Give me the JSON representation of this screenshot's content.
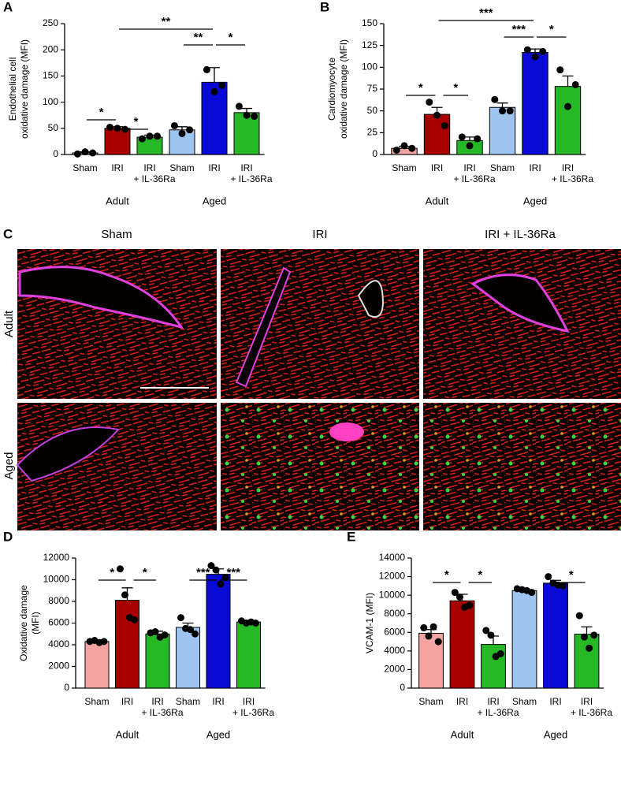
{
  "chart_data": [
    {
      "type": "bar",
      "panel": "A",
      "ylabel": [
        "Endothelial cell",
        "oxidative damage (MFI)"
      ],
      "categories": [
        [
          "Sham"
        ],
        [
          "IRI"
        ],
        [
          "IRI",
          "+ IL-36Ra"
        ],
        [
          "Sham"
        ],
        [
          "IRI"
        ],
        [
          "IRI",
          "+ IL-36Ra"
        ]
      ],
      "groups": [
        "Adult",
        "Aged"
      ],
      "values": [
        3,
        50,
        33,
        47,
        138,
        80
      ],
      "errors": [
        2,
        3,
        4,
        6,
        28,
        8
      ],
      "points": [
        [
          1,
          5,
          3
        ],
        [
          52,
          50,
          48
        ],
        [
          30,
          35,
          35
        ],
        [
          55,
          40,
          47
        ],
        [
          162,
          120,
          132
        ],
        [
          92,
          75,
          73
        ]
      ],
      "colors": [
        "#f4a3a3",
        "#a80000",
        "#27b827",
        "#9ec4f0",
        "#0a0ad8",
        "#27b827"
      ],
      "ylim": [
        0,
        250
      ],
      "yticks": [
        0,
        50,
        100,
        150,
        200,
        250
      ],
      "annotations": [
        "*",
        "*",
        "**",
        "**",
        "*"
      ]
    },
    {
      "type": "bar",
      "panel": "B",
      "ylabel": [
        "Cardiomyocyte",
        "oxidative damage (MFI)"
      ],
      "categories": [
        [
          "Sham"
        ],
        [
          "IRI"
        ],
        [
          "IRI",
          "+ IL-36Ra"
        ],
        [
          "Sham"
        ],
        [
          "IRI"
        ],
        [
          "IRI",
          "+ IL-36Ra"
        ]
      ],
      "groups": [
        "Adult",
        "Aged"
      ],
      "values": [
        7,
        46,
        16,
        54,
        117,
        78
      ],
      "errors": [
        2,
        8,
        4,
        5,
        4,
        12
      ],
      "points": [
        [
          5,
          10,
          7
        ],
        [
          60,
          45,
          33
        ],
        [
          20,
          10,
          18
        ],
        [
          63,
          50,
          50
        ],
        [
          120,
          112,
          118
        ],
        [
          97,
          55,
          80
        ]
      ],
      "colors": [
        "#f4a3a3",
        "#a80000",
        "#27b827",
        "#9ec4f0",
        "#0a0ad8",
        "#27b827"
      ],
      "ylim": [
        0,
        150
      ],
      "yticks": [
        0,
        25,
        50,
        75,
        100,
        125,
        150
      ],
      "annotations": [
        "*",
        "*",
        "***",
        "***",
        "*"
      ]
    },
    {
      "type": "bar",
      "panel": "D",
      "ylabel": [
        "Oxidative damage",
        "(MFI)"
      ],
      "categories": [
        [
          "Sham"
        ],
        [
          "IRI"
        ],
        [
          "IRI",
          "+ IL-36Ra"
        ],
        [
          "Sham"
        ],
        [
          "IRI"
        ],
        [
          "IRI",
          "+ IL-36Ra"
        ]
      ],
      "groups": [
        "Adult",
        "Aged"
      ],
      "values": [
        4300,
        8100,
        5000,
        5600,
        10500,
        6100
      ],
      "errors": [
        150,
        1150,
        250,
        400,
        500,
        150
      ],
      "points": [
        [
          4300,
          4400,
          4200,
          4300
        ],
        [
          11000,
          8600,
          6500,
          6300
        ],
        [
          5100,
          5200,
          4700,
          4900
        ],
        [
          6500,
          5500,
          5400,
          5000
        ],
        [
          11300,
          10900,
          9600,
          10200
        ],
        [
          6200,
          6000,
          6100,
          6000
        ]
      ],
      "colors": [
        "#f4a3a3",
        "#a80000",
        "#27b827",
        "#9ec4f0",
        "#0a0ad8",
        "#27b827"
      ],
      "ylim": [
        0,
        12000
      ],
      "yticks": [
        0,
        2000,
        4000,
        6000,
        8000,
        10000,
        12000
      ],
      "annotations": [
        "*",
        "*",
        "***",
        "***"
      ]
    },
    {
      "type": "bar",
      "panel": "E",
      "ylabel": [
        "VCAM-1 (MFI)"
      ],
      "categories": [
        [
          "Sham"
        ],
        [
          "IRI"
        ],
        [
          "IRI",
          "+ IL-36Ra"
        ],
        [
          "Sham"
        ],
        [
          "IRI"
        ],
        [
          "IRI",
          "+ IL-36Ra"
        ]
      ],
      "groups": [
        "Adult",
        "Aged"
      ],
      "values": [
        5900,
        9400,
        4700,
        10500,
        11300,
        5800
      ],
      "errors": [
        400,
        700,
        900,
        150,
        300,
        800
      ],
      "points": [
        [
          6500,
          5600,
          6600,
          5000
        ],
        [
          10300,
          9800,
          8700,
          8900
        ],
        [
          6200,
          5700,
          3400,
          3700
        ],
        [
          10700,
          10600,
          10500,
          10300
        ],
        [
          12000,
          11300,
          11100,
          11000
        ],
        [
          7800,
          5500,
          4300,
          5700
        ]
      ],
      "colors": [
        "#f4a3a3",
        "#a80000",
        "#27b827",
        "#9ec4f0",
        "#0a0ad8",
        "#27b827"
      ],
      "ylim": [
        0,
        14000
      ],
      "yticks": [
        0,
        2000,
        4000,
        6000,
        8000,
        10000,
        12000,
        14000
      ],
      "annotations": [
        "*",
        "*",
        "*"
      ]
    }
  ],
  "image_panel": {
    "panel": "C",
    "columns": [
      "Sham",
      "IRI",
      "IRI + IL-36Ra"
    ],
    "rows": [
      "Adult",
      "Aged"
    ]
  }
}
